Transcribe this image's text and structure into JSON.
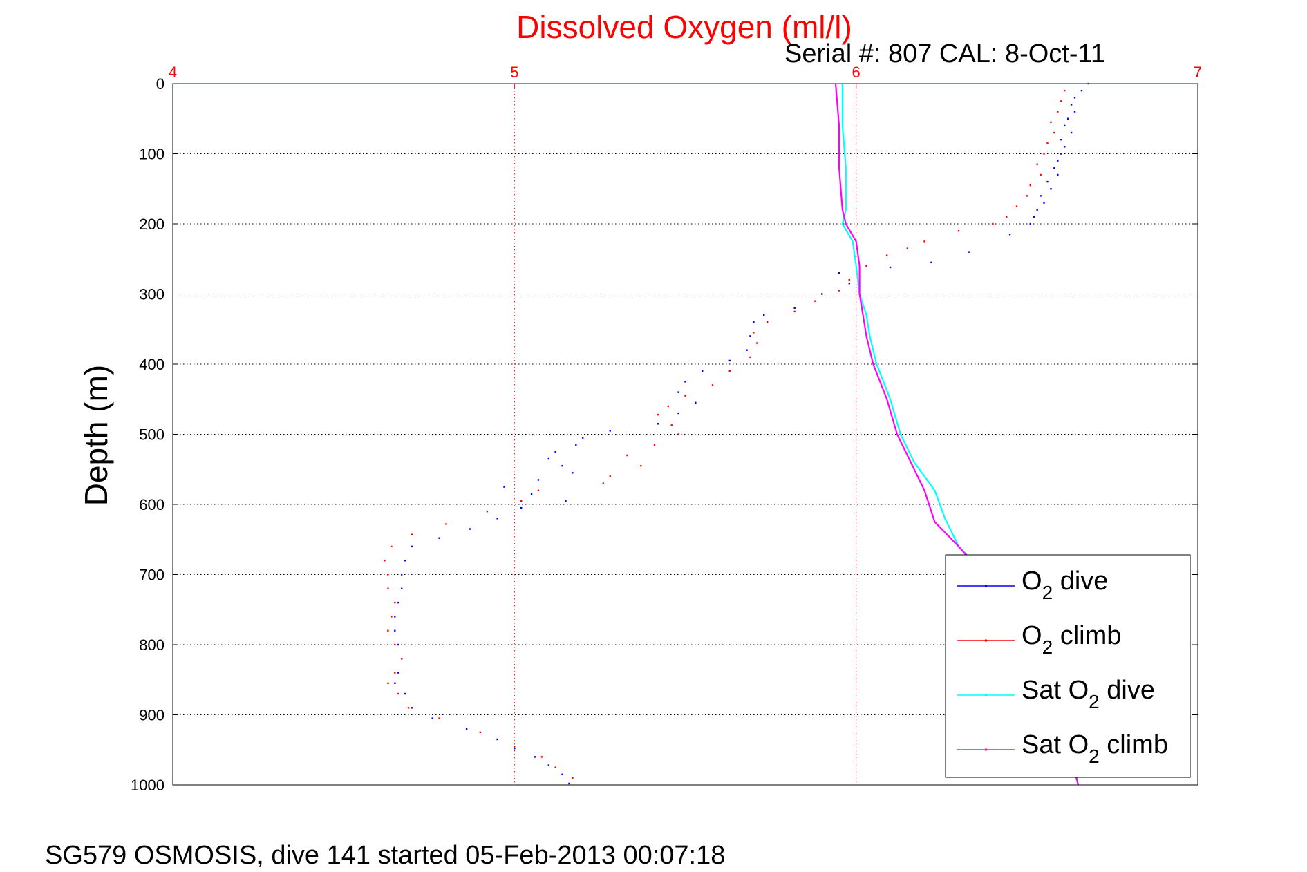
{
  "chart_data": {
    "type": "line",
    "title": "Dissolved Oxygen (ml/l)",
    "subtitle": "Serial #: 807  CAL: 8-Oct-11",
    "xlabel": "",
    "ylabel": "Depth (m)",
    "xlim": [
      4,
      7
    ],
    "ylim": [
      0,
      1000
    ],
    "y_reversed": true,
    "x_axis_position": "top",
    "x_ticks": [
      "4",
      "5",
      "6",
      "7"
    ],
    "y_ticks": [
      "0",
      "100",
      "200",
      "300",
      "400",
      "500",
      "600",
      "700",
      "800",
      "900",
      "1000"
    ],
    "grid": true,
    "legend_position": "bottom-right",
    "footer": "SG579 OSMOSIS, dive 141 started 05-Feb-2013 00:07:18",
    "series": [
      {
        "name": "O2 dive",
        "legend": {
          "main": "O",
          "sub": "2",
          "rest": " dive"
        },
        "color": "#0000ff",
        "style": "dots",
        "points": [
          [
            6.68,
            0
          ],
          [
            6.66,
            10
          ],
          [
            6.64,
            20
          ],
          [
            6.63,
            30
          ],
          [
            6.64,
            40
          ],
          [
            6.62,
            50
          ],
          [
            6.61,
            60
          ],
          [
            6.63,
            70
          ],
          [
            6.6,
            80
          ],
          [
            6.61,
            90
          ],
          [
            6.6,
            100
          ],
          [
            6.59,
            110
          ],
          [
            6.58,
            120
          ],
          [
            6.59,
            130
          ],
          [
            6.56,
            140
          ],
          [
            6.57,
            150
          ],
          [
            6.54,
            160
          ],
          [
            6.55,
            170
          ],
          [
            6.53,
            180
          ],
          [
            6.52,
            190
          ],
          [
            6.51,
            200
          ],
          [
            6.45,
            215
          ],
          [
            6.33,
            240
          ],
          [
            6.22,
            255
          ],
          [
            6.1,
            262
          ],
          [
            5.95,
            270
          ],
          [
            5.98,
            285
          ],
          [
            5.9,
            300
          ],
          [
            5.82,
            320
          ],
          [
            5.73,
            330
          ],
          [
            5.7,
            340
          ],
          [
            5.69,
            360
          ],
          [
            5.68,
            380
          ],
          [
            5.63,
            395
          ],
          [
            5.55,
            410
          ],
          [
            5.5,
            425
          ],
          [
            5.48,
            440
          ],
          [
            5.53,
            455
          ],
          [
            5.48,
            470
          ],
          [
            5.42,
            485
          ],
          [
            5.28,
            495
          ],
          [
            5.2,
            505
          ],
          [
            5.18,
            515
          ],
          [
            5.12,
            525
          ],
          [
            5.1,
            535
          ],
          [
            5.14,
            545
          ],
          [
            5.17,
            555
          ],
          [
            5.07,
            565
          ],
          [
            4.97,
            575
          ],
          [
            5.05,
            585
          ],
          [
            5.15,
            595
          ],
          [
            5.02,
            605
          ],
          [
            4.95,
            620
          ],
          [
            4.87,
            635
          ],
          [
            4.78,
            648
          ],
          [
            4.7,
            660
          ],
          [
            4.68,
            680
          ],
          [
            4.67,
            700
          ],
          [
            4.67,
            720
          ],
          [
            4.66,
            740
          ],
          [
            4.65,
            760
          ],
          [
            4.65,
            780
          ],
          [
            4.66,
            800
          ],
          [
            4.67,
            820
          ],
          [
            4.66,
            840
          ],
          [
            4.65,
            855
          ],
          [
            4.68,
            870
          ],
          [
            4.7,
            890
          ],
          [
            4.76,
            905
          ],
          [
            4.86,
            920
          ],
          [
            4.95,
            935
          ],
          [
            5.0,
            948
          ],
          [
            5.06,
            960
          ],
          [
            5.1,
            972
          ],
          [
            5.14,
            985
          ],
          [
            5.16,
            998
          ]
        ]
      },
      {
        "name": "O2 climb",
        "legend": {
          "main": "O",
          "sub": "2",
          "rest": " climb"
        },
        "color": "#ff0000",
        "style": "dots",
        "points": [
          [
            6.61,
            10
          ],
          [
            6.6,
            25
          ],
          [
            6.59,
            40
          ],
          [
            6.57,
            55
          ],
          [
            6.58,
            70
          ],
          [
            6.56,
            85
          ],
          [
            6.55,
            100
          ],
          [
            6.53,
            115
          ],
          [
            6.54,
            130
          ],
          [
            6.51,
            145
          ],
          [
            6.5,
            160
          ],
          [
            6.47,
            175
          ],
          [
            6.44,
            190
          ],
          [
            6.4,
            200
          ],
          [
            6.3,
            210
          ],
          [
            6.2,
            225
          ],
          [
            6.15,
            235
          ],
          [
            6.09,
            245
          ],
          [
            6.03,
            260
          ],
          [
            5.98,
            280
          ],
          [
            5.95,
            295
          ],
          [
            5.88,
            310
          ],
          [
            5.82,
            325
          ],
          [
            5.74,
            340
          ],
          [
            5.7,
            355
          ],
          [
            5.71,
            370
          ],
          [
            5.69,
            390
          ],
          [
            5.63,
            410
          ],
          [
            5.58,
            430
          ],
          [
            5.5,
            445
          ],
          [
            5.45,
            460
          ],
          [
            5.42,
            472
          ],
          [
            5.46,
            487
          ],
          [
            5.48,
            500
          ],
          [
            5.41,
            515
          ],
          [
            5.33,
            530
          ],
          [
            5.37,
            545
          ],
          [
            5.28,
            560
          ],
          [
            5.26,
            570
          ],
          [
            5.07,
            580
          ],
          [
            5.02,
            595
          ],
          [
            4.92,
            610
          ],
          [
            4.8,
            628
          ],
          [
            4.7,
            643
          ],
          [
            4.64,
            660
          ],
          [
            4.62,
            680
          ],
          [
            4.63,
            700
          ],
          [
            4.63,
            720
          ],
          [
            4.65,
            740
          ],
          [
            4.64,
            760
          ],
          [
            4.63,
            780
          ],
          [
            4.65,
            800
          ],
          [
            4.67,
            820
          ],
          [
            4.65,
            840
          ],
          [
            4.63,
            855
          ],
          [
            4.66,
            870
          ],
          [
            4.69,
            890
          ],
          [
            4.78,
            905
          ],
          [
            4.9,
            925
          ],
          [
            5.0,
            945
          ],
          [
            5.08,
            960
          ],
          [
            5.12,
            975
          ],
          [
            5.17,
            990
          ]
        ]
      },
      {
        "name": "Sat O2 dive",
        "legend": {
          "main": "Sat O",
          "sub": "2",
          "rest": " dive"
        },
        "color": "#00ffff",
        "style": "line",
        "points": [
          [
            5.96,
            0
          ],
          [
            5.96,
            60
          ],
          [
            5.97,
            120
          ],
          [
            5.97,
            180
          ],
          [
            5.96,
            200
          ],
          [
            5.99,
            225
          ],
          [
            6.0,
            260
          ],
          [
            6.01,
            300
          ],
          [
            6.03,
            330
          ],
          [
            6.04,
            360
          ],
          [
            6.06,
            400
          ],
          [
            6.1,
            450
          ],
          [
            6.13,
            500
          ],
          [
            6.17,
            540
          ],
          [
            6.23,
            580
          ],
          [
            6.26,
            620
          ],
          [
            6.3,
            660
          ],
          [
            6.4,
            710
          ],
          [
            6.48,
            780
          ],
          [
            6.55,
            860
          ],
          [
            6.62,
            930
          ],
          [
            6.65,
            1000
          ]
        ]
      },
      {
        "name": "Sat O2 climb",
        "legend": {
          "main": "Sat O",
          "sub": "2",
          "rest": " climb"
        },
        "color": "#ff00ff",
        "style": "line",
        "points": [
          [
            5.94,
            0
          ],
          [
            5.95,
            60
          ],
          [
            5.95,
            120
          ],
          [
            5.96,
            180
          ],
          [
            5.97,
            200
          ],
          [
            6.0,
            225
          ],
          [
            6.01,
            260
          ],
          [
            6.01,
            300
          ],
          [
            6.02,
            330
          ],
          [
            6.03,
            360
          ],
          [
            6.05,
            400
          ],
          [
            6.09,
            450
          ],
          [
            6.12,
            500
          ],
          [
            6.16,
            540
          ],
          [
            6.2,
            580
          ],
          [
            6.23,
            625
          ],
          [
            6.3,
            660
          ],
          [
            6.39,
            710
          ],
          [
            6.47,
            780
          ],
          [
            6.54,
            860
          ],
          [
            6.61,
            930
          ],
          [
            6.65,
            1000
          ]
        ]
      }
    ]
  }
}
